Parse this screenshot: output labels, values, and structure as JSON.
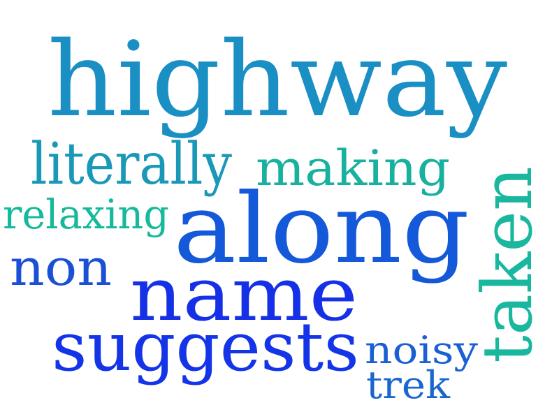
{
  "word_cloud": {
    "words": [
      {
        "text": "highway",
        "color": "#1a8fc4"
      },
      {
        "text": "literally",
        "color": "#1a98b8"
      },
      {
        "text": "making",
        "color": "#18b09e"
      },
      {
        "text": "relaxing",
        "color": "#16b99c"
      },
      {
        "text": "along",
        "color": "#1459d9"
      },
      {
        "text": "taken",
        "color": "#19b79e"
      },
      {
        "text": "non",
        "color": "#1a4fd6"
      },
      {
        "text": "name",
        "color": "#1530e6"
      },
      {
        "text": "suggests",
        "color": "#1434e8"
      },
      {
        "text": "noisy",
        "color": "#1a5fd3"
      },
      {
        "text": "trek",
        "color": "#1a66d0"
      }
    ]
  }
}
